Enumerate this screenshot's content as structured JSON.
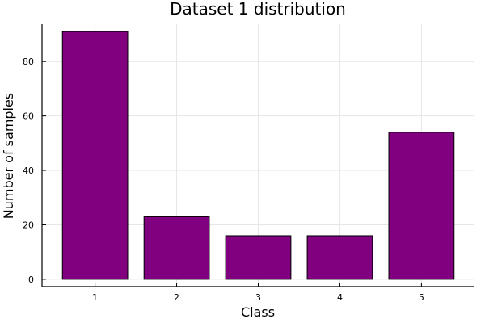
{
  "chart_data": {
    "type": "bar",
    "title": "Dataset 1 distribution",
    "xlabel": "Class",
    "ylabel": "Number of samples",
    "categories": [
      "1",
      "2",
      "3",
      "4",
      "5"
    ],
    "values": [
      91,
      23,
      16,
      16,
      54
    ],
    "ylim": [
      -2.7,
      93.7
    ],
    "yticks": [
      0,
      20,
      40,
      60,
      80
    ],
    "grid": true,
    "bar_color": "#800080",
    "legend": "none"
  }
}
